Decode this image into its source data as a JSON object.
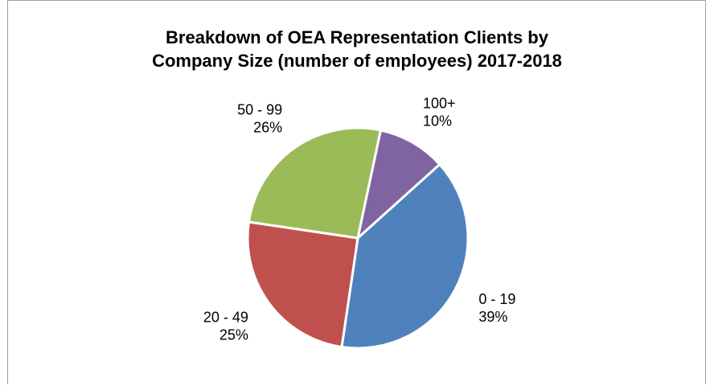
{
  "chart_data": {
    "type": "pie",
    "title": "Breakdown of OEA Representation Clients by\nCompany Size (number of employees) 2017-2018",
    "categories": [
      "0 - 19",
      "20 - 49",
      "50 - 99",
      "100+"
    ],
    "values": [
      39,
      25,
      26,
      10
    ],
    "value_labels": [
      "39%",
      "25%",
      "26%",
      "10%"
    ],
    "colors": [
      "#4f81bd",
      "#c0504d",
      "#9bbb59",
      "#8064a2"
    ]
  }
}
